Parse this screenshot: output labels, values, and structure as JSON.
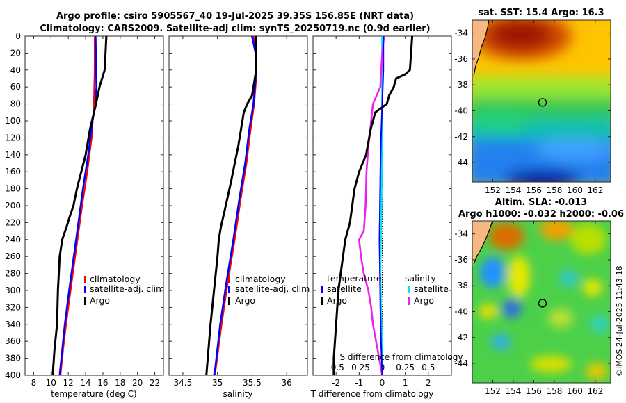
{
  "title": {
    "line1": "Argo profile: csiro 5905567_40 19-Jul-2025 39.35S 156.85E (NRT data)",
    "line2": "Climatology: CARS2009. Satellite-adj clim: synTS_20250719.nc (0.9d earlier)"
  },
  "colors": {
    "climatology": "#ff0000",
    "satellite_adj": "#0000ff",
    "argo": "#000000",
    "sat_salinity": "#00e5ee",
    "argo_s_diff": "#ee22ee"
  },
  "chart_data": [
    {
      "type": "line",
      "id": "temperature",
      "xlabel": "temperature (deg C)",
      "xlim": [
        7,
        23
      ],
      "ylim": [
        0,
        400
      ],
      "y_reversed": true,
      "xticks": [
        8,
        10,
        12,
        14,
        16,
        18,
        20,
        22
      ],
      "yticks": [
        0,
        20,
        40,
        60,
        80,
        100,
        120,
        140,
        160,
        180,
        200,
        220,
        240,
        260,
        280,
        300,
        320,
        340,
        360,
        380,
        400
      ],
      "legend": [
        "climatology",
        "satellite-adj. clim",
        "Argo"
      ],
      "series": [
        {
          "name": "climatology",
          "points": [
            [
              15.05,
              0
            ],
            [
              15.05,
              40
            ],
            [
              15.0,
              60
            ],
            [
              14.95,
              80
            ],
            [
              14.7,
              120
            ],
            [
              14.2,
              160
            ],
            [
              13.6,
              200
            ],
            [
              12.8,
              260
            ],
            [
              12.0,
              320
            ],
            [
              11.5,
              360
            ],
            [
              11.1,
              400
            ]
          ]
        },
        {
          "name": "satellite-adj. clim",
          "points": [
            [
              15.15,
              0
            ],
            [
              15.2,
              30
            ],
            [
              15.25,
              60
            ],
            [
              15.15,
              80
            ],
            [
              14.8,
              100
            ],
            [
              14.3,
              140
            ],
            [
              13.7,
              180
            ],
            [
              12.9,
              240
            ],
            [
              12.1,
              300
            ],
            [
              11.6,
              340
            ],
            [
              11.3,
              370
            ],
            [
              11.0,
              400
            ]
          ]
        },
        {
          "name": "Argo",
          "points": [
            [
              16.4,
              0
            ],
            [
              16.3,
              20
            ],
            [
              16.2,
              40
            ],
            [
              15.9,
              50
            ],
            [
              15.6,
              60
            ],
            [
              15.2,
              80
            ],
            [
              14.5,
              110
            ],
            [
              14.0,
              140
            ],
            [
              13.5,
              160
            ],
            [
              13.0,
              180
            ],
            [
              12.6,
              200
            ],
            [
              12.1,
              215
            ],
            [
              11.8,
              225
            ],
            [
              11.3,
              240
            ],
            [
              11.0,
              260
            ],
            [
              10.8,
              300
            ],
            [
              10.7,
              340
            ],
            [
              10.4,
              370
            ],
            [
              10.2,
              400
            ]
          ]
        }
      ]
    },
    {
      "type": "line",
      "id": "salinity",
      "xlabel": "salinity",
      "xlim": [
        34.3,
        36.3
      ],
      "ylim": [
        0,
        400
      ],
      "y_reversed": true,
      "xticks": [
        34.5,
        35,
        35.5,
        36
      ],
      "xtick_labels": [
        "34.5",
        "35",
        "35.5",
        "36"
      ],
      "legend": [
        "climatology",
        "satellite-adj. clim",
        "Argo"
      ],
      "series": [
        {
          "name": "climatology",
          "points": [
            [
              35.52,
              0
            ],
            [
              35.56,
              20
            ],
            [
              35.56,
              50
            ],
            [
              35.53,
              80
            ],
            [
              35.48,
              110
            ],
            [
              35.42,
              150
            ],
            [
              35.34,
              190
            ],
            [
              35.25,
              240
            ],
            [
              35.15,
              290
            ],
            [
              35.06,
              340
            ],
            [
              34.98,
              390
            ],
            [
              34.96,
              400
            ]
          ]
        },
        {
          "name": "satellite-adj. clim",
          "points": [
            [
              35.5,
              0
            ],
            [
              35.55,
              20
            ],
            [
              35.55,
              50
            ],
            [
              35.52,
              80
            ],
            [
              35.46,
              110
            ],
            [
              35.4,
              150
            ],
            [
              35.32,
              190
            ],
            [
              35.23,
              240
            ],
            [
              35.13,
              290
            ],
            [
              35.04,
              340
            ],
            [
              34.97,
              390
            ],
            [
              34.95,
              400
            ]
          ]
        },
        {
          "name": "Argo",
          "points": [
            [
              35.56,
              0
            ],
            [
              35.56,
              40
            ],
            [
              35.5,
              70
            ],
            [
              35.43,
              80
            ],
            [
              35.38,
              90
            ],
            [
              35.34,
              110
            ],
            [
              35.3,
              130
            ],
            [
              35.25,
              150
            ],
            [
              35.2,
              170
            ],
            [
              35.12,
              200
            ],
            [
              35.05,
              225
            ],
            [
              35.02,
              240
            ],
            [
              35.0,
              260
            ],
            [
              34.95,
              300
            ],
            [
              34.9,
              340
            ],
            [
              34.86,
              380
            ],
            [
              34.84,
              400
            ]
          ]
        }
      ]
    },
    {
      "type": "line",
      "id": "difference",
      "xlabel": "T difference from climatology",
      "xlabel_top": "S difference from climatology",
      "xlim": [
        -3,
        3
      ],
      "ylim": [
        0,
        400
      ],
      "y_reversed": true,
      "xticks": [
        -2,
        -1,
        0,
        1,
        2
      ],
      "xtick_labels": [
        "-2",
        "-1",
        "0",
        "1",
        "2"
      ],
      "xticks_top": [
        -0.5,
        -0.25,
        0,
        0.25,
        0.5
      ],
      "xtick_labels_top": [
        "-0.5",
        "-0.25",
        "0",
        "0.25",
        "0.5"
      ],
      "s_scale_ratio": 4,
      "legend_titles": [
        "temperature",
        "salinity"
      ],
      "legend_left": [
        "satellite",
        "Argo"
      ],
      "legend_right": [
        "satellite",
        "Argo"
      ],
      "series": [
        {
          "name": "T satellite",
          "points": [
            [
              0.05,
              0
            ],
            [
              0.05,
              40
            ],
            [
              0.0,
              80
            ],
            [
              -0.05,
              120
            ],
            [
              -0.08,
              160
            ],
            [
              -0.1,
              200
            ],
            [
              -0.12,
              240
            ],
            [
              -0.1,
              280
            ],
            [
              -0.08,
              320
            ],
            [
              -0.05,
              360
            ],
            [
              0.0,
              400
            ]
          ]
        },
        {
          "name": "T Argo",
          "points": [
            [
              1.3,
              0
            ],
            [
              1.25,
              20
            ],
            [
              1.2,
              40
            ],
            [
              1.0,
              45
            ],
            [
              0.6,
              50
            ],
            [
              0.5,
              60
            ],
            [
              0.3,
              70
            ],
            [
              0.2,
              80
            ],
            [
              -0.3,
              90
            ],
            [
              -0.5,
              110
            ],
            [
              -0.7,
              140
            ],
            [
              -1.0,
              160
            ],
            [
              -1.2,
              180
            ],
            [
              -1.3,
              200
            ],
            [
              -1.4,
              220
            ],
            [
              -1.6,
              240
            ],
            [
              -1.7,
              260
            ],
            [
              -1.9,
              300
            ],
            [
              -2.0,
              340
            ],
            [
              -2.1,
              380
            ],
            [
              -2.1,
              400
            ]
          ]
        },
        {
          "name": "S satellite",
          "points": [
            [
              0.0,
              0
            ],
            [
              0.0,
              100
            ],
            [
              -0.01,
              200
            ],
            [
              -0.02,
              280
            ],
            [
              -0.01,
              340
            ],
            [
              0.0,
              400
            ]
          ]
        },
        {
          "name": "S Argo",
          "points": [
            [
              0.02,
              0
            ],
            [
              0.0,
              20
            ],
            [
              -0.02,
              60
            ],
            [
              -0.1,
              80
            ],
            [
              -0.12,
              100
            ],
            [
              -0.15,
              130
            ],
            [
              -0.17,
              160
            ],
            [
              -0.18,
              200
            ],
            [
              -0.2,
              230
            ],
            [
              -0.25,
              240
            ],
            [
              -0.23,
              260
            ],
            [
              -0.2,
              280
            ],
            [
              -0.15,
              300
            ],
            [
              -0.12,
              320
            ],
            [
              -0.1,
              340
            ],
            [
              -0.05,
              370
            ],
            [
              0.0,
              400
            ]
          ]
        }
      ]
    },
    {
      "type": "heatmap",
      "id": "sst_map",
      "title": "sat. SST: 15.4 Argo: 16.3",
      "xlim": [
        150,
        163.5
      ],
      "ylim": [
        -45.5,
        -33
      ],
      "xticks": [
        152,
        154,
        156,
        158,
        160,
        162
      ],
      "yticks": [
        -34,
        -36,
        -38,
        -40,
        -42,
        -44
      ],
      "marker": [
        156.85,
        -39.35
      ]
    },
    {
      "type": "heatmap",
      "id": "sla_map",
      "title_line1": "Altim. SLA: -0.013",
      "title_line2": "Argo h1000: -0.032 h2000: -0.06",
      "xlim": [
        150,
        163.5
      ],
      "ylim": [
        -45.5,
        -33
      ],
      "xticks": [
        152,
        154,
        156,
        158,
        160,
        162
      ],
      "yticks": [
        -34,
        -36,
        -38,
        -40,
        -42,
        -44
      ],
      "marker": [
        156.85,
        -39.35
      ]
    }
  ],
  "stamp": "©IMOS 24-Jul-2025 11:43:18"
}
